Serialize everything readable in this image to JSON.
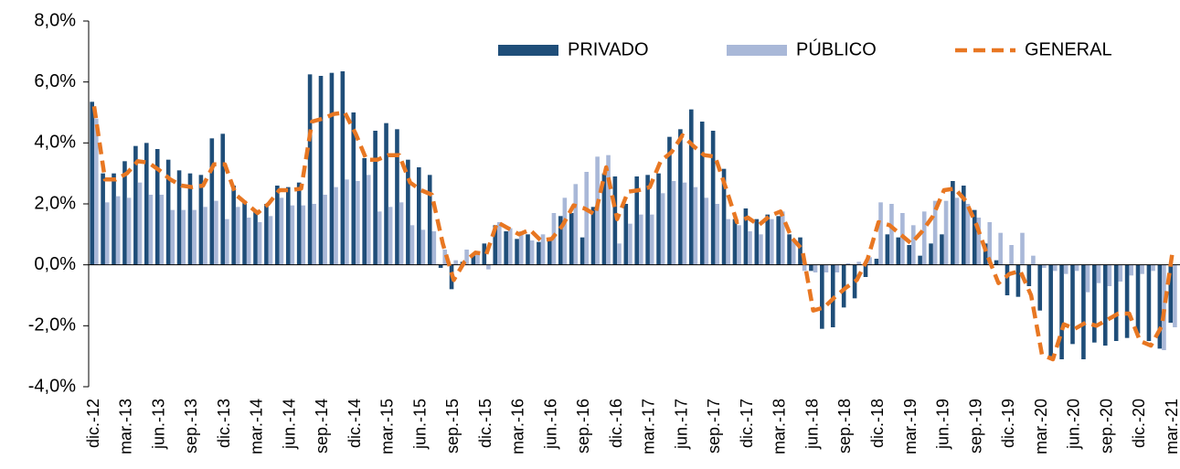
{
  "chart_data": {
    "type": "bar_line",
    "categories": [
      "dic.-12",
      null,
      null,
      "mar.-13",
      null,
      null,
      "jun.-13",
      null,
      null,
      "sep.-13",
      null,
      null,
      "dic.-13",
      null,
      null,
      "mar.-14",
      null,
      null,
      "jun.-14",
      null,
      null,
      "sep.-14",
      null,
      null,
      "dic.-14",
      null,
      null,
      "mar.-15",
      null,
      null,
      "jun.-15",
      null,
      null,
      "sep.-15",
      null,
      null,
      "dic.-15",
      null,
      null,
      "mar.-16",
      null,
      null,
      "jun.-16",
      null,
      null,
      "sep.-16",
      null,
      null,
      "dic.-16",
      null,
      null,
      "mar.-17",
      null,
      null,
      "jun.-17",
      null,
      null,
      "sep.-17",
      null,
      null,
      "dic.-17",
      null,
      null,
      "mar.-18",
      null,
      null,
      "jun.-18",
      null,
      null,
      "sep.-18",
      null,
      null,
      "dic.-18",
      null,
      null,
      "mar.-19",
      null,
      null,
      "jun.-19",
      null,
      null,
      "sep.-19",
      null,
      null,
      "dic.-19",
      null,
      null,
      "mar.-20",
      null,
      null,
      "jun.-20",
      null,
      null,
      "sep.-20",
      null,
      null,
      "dic.-20",
      null,
      null,
      "mar.-21"
    ],
    "series": [
      {
        "name": "PRIVADO",
        "kind": "bar",
        "color": "#1f4e79",
        "values": [
          5.35,
          3.0,
          3.0,
          3.4,
          3.9,
          4.0,
          3.8,
          3.45,
          3.1,
          3.0,
          2.95,
          4.15,
          4.3,
          2.6,
          2.1,
          1.8,
          2.0,
          2.6,
          2.55,
          2.7,
          6.25,
          6.2,
          6.3,
          6.35,
          5.0,
          3.5,
          4.4,
          4.65,
          4.45,
          3.45,
          3.2,
          2.95,
          -0.1,
          -0.8,
          0.1,
          0.3,
          0.7,
          1.3,
          1.1,
          0.85,
          1.0,
          0.75,
          0.85,
          1.6,
          1.7,
          0.9,
          1.9,
          3.0,
          2.9,
          2.0,
          2.9,
          2.95,
          3.0,
          4.2,
          4.45,
          5.1,
          4.7,
          4.4,
          3.15,
          1.5,
          1.85,
          1.5,
          1.65,
          1.6,
          1.0,
          0.9,
          -0.2,
          -2.1,
          -2.05,
          -1.4,
          -1.1,
          -0.4,
          0.2,
          1.0,
          0.9,
          0.65,
          0.3,
          0.7,
          1.0,
          2.75,
          2.6,
          1.8,
          0.7,
          0.15,
          -1.0,
          -1.05,
          -0.7,
          -1.5,
          -3.0,
          -3.1,
          -2.6,
          -3.1,
          -2.55,
          -2.65,
          -2.5,
          -2.4,
          -2.25,
          -2.5,
          -2.75,
          -1.9
        ]
      },
      {
        "name": "PÚBLICO",
        "kind": "bar",
        "color": "#a9b8d8",
        "values": [
          4.8,
          2.05,
          2.25,
          2.2,
          2.7,
          2.3,
          2.3,
          1.8,
          1.8,
          1.8,
          1.9,
          2.1,
          1.5,
          1.9,
          1.55,
          1.4,
          1.6,
          2.2,
          1.95,
          1.95,
          2.0,
          2.3,
          2.55,
          2.8,
          2.75,
          2.95,
          1.75,
          1.9,
          2.05,
          1.3,
          1.15,
          1.1,
          0.5,
          0.15,
          0.5,
          0.35,
          -0.15,
          1.4,
          1.2,
          1.1,
          0.8,
          1.0,
          1.7,
          2.2,
          2.65,
          3.05,
          3.55,
          3.6,
          0.7,
          1.35,
          1.65,
          1.65,
          2.35,
          2.75,
          2.7,
          2.55,
          2.2,
          2.0,
          1.5,
          1.3,
          1.1,
          1.0,
          1.5,
          1.75,
          0.85,
          -0.2,
          -0.25,
          -0.25,
          -0.25,
          0.05,
          0.1,
          0.25,
          2.05,
          2.0,
          1.7,
          1.3,
          1.75,
          2.1,
          2.1,
          2.2,
          2.0,
          1.55,
          1.4,
          1.05,
          0.65,
          1.05,
          0.3,
          -0.1,
          -0.2,
          -0.3,
          -0.2,
          -0.9,
          -0.6,
          -0.7,
          -0.55,
          -0.35,
          -0.3,
          -0.2,
          -2.8,
          -2.05
        ]
      },
      {
        "name": "GENERAL",
        "kind": "line",
        "color": "#e87722",
        "values": [
          5.2,
          2.8,
          2.8,
          3.0,
          3.4,
          3.35,
          3.1,
          2.8,
          2.6,
          2.55,
          2.6,
          3.3,
          3.3,
          2.3,
          2.0,
          1.7,
          2.0,
          2.45,
          2.45,
          2.5,
          4.7,
          4.8,
          4.95,
          5.0,
          4.3,
          3.45,
          3.45,
          3.6,
          3.6,
          2.7,
          2.45,
          2.3,
          0.7,
          -0.5,
          0.1,
          0.4,
          0.35,
          1.4,
          1.2,
          1.0,
          1.15,
          0.8,
          0.85,
          1.3,
          1.95,
          1.85,
          1.65,
          3.2,
          1.5,
          2.4,
          2.45,
          2.55,
          3.4,
          3.7,
          4.25,
          3.9,
          3.6,
          3.55,
          2.5,
          1.4,
          1.55,
          1.3,
          1.6,
          1.75,
          0.9,
          0.5,
          -1.5,
          -1.4,
          -1.05,
          -0.75,
          -0.5,
          0.2,
          1.4,
          1.3,
          1.0,
          0.7,
          1.1,
          1.6,
          2.45,
          2.5,
          2.1,
          1.3,
          0.3,
          -0.6,
          -0.3,
          -0.2,
          -1.0,
          -2.95,
          -3.1,
          -1.95,
          -2.1,
          -1.9,
          -2.0,
          -1.8,
          -1.6,
          -1.6,
          -2.5,
          -2.65,
          -2.0,
          0.5
        ]
      }
    ],
    "ylim": [
      -4,
      8
    ],
    "yticks": [
      {
        "value": -4,
        "label": "-4,0%"
      },
      {
        "value": -2,
        "label": "-2,0%"
      },
      {
        "value": 0,
        "label": "0,0%"
      },
      {
        "value": 2,
        "label": "2,0%"
      },
      {
        "value": 4,
        "label": "4,0%"
      },
      {
        "value": 6,
        "label": "6,0%"
      },
      {
        "value": 8,
        "label": "8,0%"
      }
    ],
    "grid": false,
    "legend": "top-right"
  }
}
